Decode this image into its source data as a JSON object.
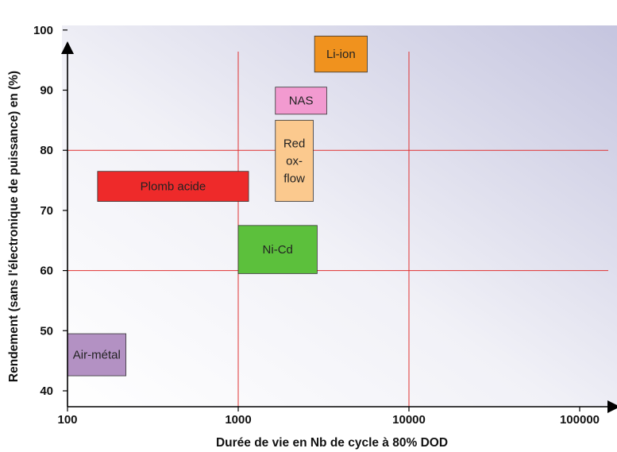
{
  "chart_data": {
    "type": "range-box",
    "xlabel": "Durée de vie en Nb de cycle à 80% DOD",
    "ylabel": "Rendement (sans l'électronique de puissance) en (%)",
    "xscale": "log",
    "xlim": [
      100,
      180000
    ],
    "ylim": [
      38,
      100
    ],
    "xticks": [
      100,
      1000,
      10000,
      100000
    ],
    "xtick_labels": [
      "100",
      "1000",
      "10000",
      "100000"
    ],
    "yticks": [
      40,
      50,
      60,
      70,
      80,
      90,
      100
    ],
    "ytick_labels": [
      "40",
      "50",
      "60",
      "70",
      "80",
      "90",
      "100"
    ],
    "grid": {
      "x": [
        1000,
        10000
      ],
      "y": [
        60,
        80
      ]
    },
    "series": [
      {
        "name": "Li-ion",
        "label_lines": [
          "Li-ion"
        ],
        "x": [
          2800,
          5700
        ],
        "y": [
          93,
          99
        ],
        "color": "#f0921e"
      },
      {
        "name": "NAS",
        "label_lines": [
          "NAS"
        ],
        "x": [
          1650,
          3300
        ],
        "y": [
          86,
          90.5
        ],
        "color": "#f29ad0"
      },
      {
        "name": "Red ox-flow",
        "label_lines": [
          "Red",
          "ox-",
          "flow"
        ],
        "x": [
          1650,
          2750
        ],
        "y": [
          71.5,
          85
        ],
        "color": "#fbc98e"
      },
      {
        "name": "Plomb acide",
        "label_lines": [
          "Plomb acide"
        ],
        "x": [
          150,
          1150
        ],
        "y": [
          71.5,
          76.5
        ],
        "color": "#ee2a2a"
      },
      {
        "name": "Ni-Cd",
        "label_lines": [
          "Ni-Cd"
        ],
        "x": [
          1000,
          2900
        ],
        "y": [
          59.5,
          67.5
        ],
        "color": "#5cc03c"
      },
      {
        "name": "Air-métal",
        "label_lines": [
          "Air-métal"
        ],
        "x": [
          100,
          220
        ],
        "y": [
          42.5,
          49.5
        ],
        "color": "#b391c3"
      }
    ]
  }
}
